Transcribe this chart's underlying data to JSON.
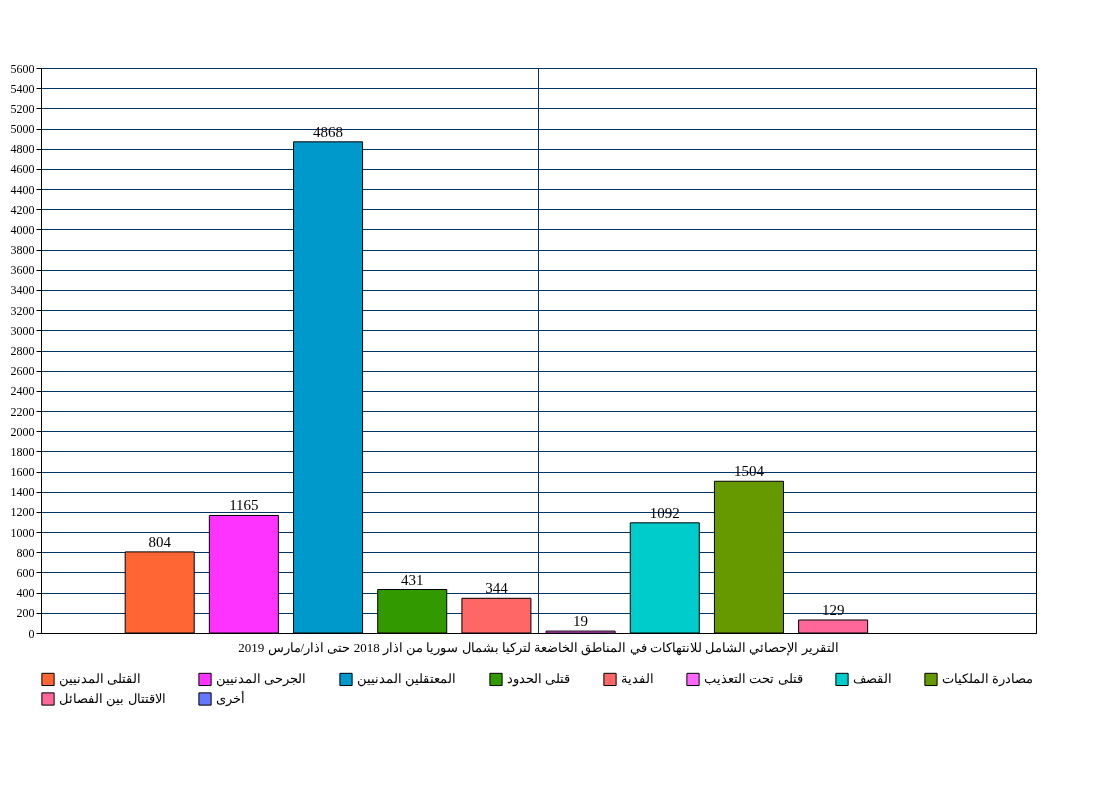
{
  "chart_data": {
    "type": "bar",
    "xlabel": null,
    "categories": [
      "التقرير الإحصائي الشامل للانتهاكات في المناطق الخاضعة لتركيا بشمال سوريا من اذار 2018  حتى اذار/مارس 2019"
    ],
    "series": [
      {
        "name": "القتلى المدنيين",
        "color": "#ff6633",
        "values": [
          804
        ]
      },
      {
        "name": "الجرحى المدنيين",
        "color": "#ff33ff",
        "values": [
          1165
        ]
      },
      {
        "name": "المعتقلين المدنيين",
        "color": "#0099cc",
        "values": [
          4868
        ]
      },
      {
        "name": "قتلى الحدود",
        "color": "#339900",
        "values": [
          431
        ]
      },
      {
        "name": "الفدية",
        "color": "#ff6666",
        "values": [
          344
        ]
      },
      {
        "name": "قتلى تحت التعذيب",
        "color": "#ff66ff",
        "values": [
          19
        ]
      },
      {
        "name": "القصف",
        "color": "#00cccc",
        "values": [
          1092
        ]
      },
      {
        "name": "مصادرة الملكيات",
        "color": "#669900",
        "values": [
          1504
        ]
      },
      {
        "name": "الاقتتال بين الفصائل",
        "color": "#ff6699",
        "values": [
          129
        ]
      },
      {
        "name": "أخرى",
        "color": "#6677ff",
        "values": [
          null
        ]
      }
    ],
    "ylim": [
      0,
      5600
    ],
    "yticks": [
      0,
      200,
      400,
      600,
      800,
      1000,
      1200,
      1400,
      1600,
      1800,
      2000,
      2200,
      2400,
      2600,
      2800,
      3000,
      3200,
      3400,
      3600,
      3800,
      4000,
      4200,
      4400,
      4600,
      4800,
      5000,
      5200,
      5400,
      5600
    ],
    "grid": true,
    "legend": "bottom",
    "data_labels": true
  }
}
